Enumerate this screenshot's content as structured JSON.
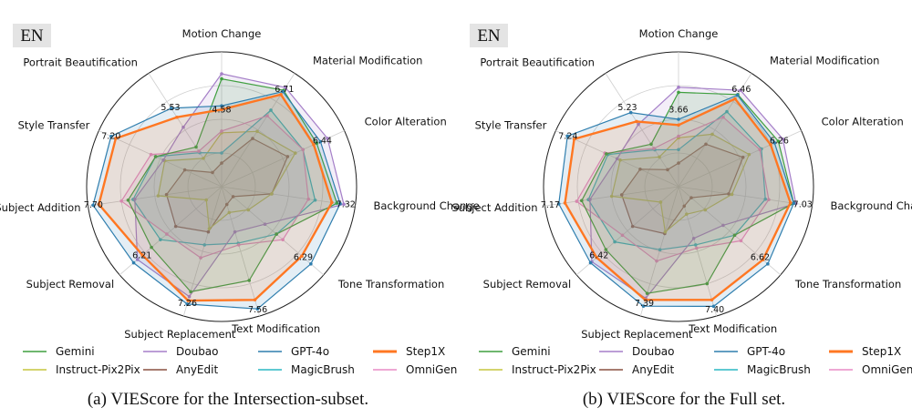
{
  "chart_data": [
    {
      "type": "radar",
      "badge": "EN",
      "caption": "(a) VIEScore for the Intersection-subset.",
      "axes": [
        "Motion Change",
        "Material Modification",
        "Color Alteration",
        "Background Change",
        "Tone Transformation",
        "Text Modification",
        "Subject Replacement",
        "Subject Removal",
        "Subject Addition",
        "Style Transfer",
        "Portrait Beautification"
      ],
      "range": [
        0,
        8
      ],
      "series": [
        {
          "name": "Gemini",
          "color": "#3f9f3f",
          "values": [
            6.4,
            6.8,
            6.2,
            6.9,
            4.3,
            5.8,
            6.5,
            5.5,
            5.6,
            4.3,
            2.8
          ]
        },
        {
          "name": "Doubao",
          "color": "#a57fc8",
          "values": [
            6.7,
            7.0,
            6.9,
            7.32,
            3.4,
            2.8,
            6.8,
            6.6,
            5.2,
            3.8,
            4.2
          ]
        },
        {
          "name": "GPT-4o",
          "color": "#2f7eae",
          "values": [
            4.8,
            6.71,
            6.44,
            7.1,
            7.0,
            7.56,
            7.26,
            6.9,
            7.7,
            7.2,
            5.53
          ]
        },
        {
          "name": "Step1X",
          "color": "#ff7722",
          "values": [
            4.58,
            6.5,
            6.0,
            6.6,
            6.29,
            7.0,
            7.05,
            6.21,
            7.35,
            6.9,
            4.9
          ]
        },
        {
          "name": "Instruct-Pix2Pix",
          "color": "#c6c63e",
          "values": [
            3.2,
            3.9,
            4.8,
            3.0,
            2.1,
            1.6,
            2.6,
            1.2,
            3.8,
            3.7,
            2.0
          ]
        },
        {
          "name": "AnyEdit",
          "color": "#8a5040",
          "values": [
            1.4,
            3.4,
            4.3,
            3.0,
            0.9,
            1.1,
            2.8,
            3.6,
            3.3,
            2.4,
            1.0
          ]
        },
        {
          "name": "MagicBrush",
          "color": "#2ab8c4",
          "values": [
            2.0,
            5.4,
            5.3,
            5.6,
            4.3,
            3.5,
            3.6,
            4.8,
            5.3,
            4.3,
            2.4
          ]
        },
        {
          "name": "OmniGen",
          "color": "#e88cc6",
          "values": [
            3.3,
            5.0,
            5.3,
            5.2,
            4.8,
            3.6,
            4.4,
            4.3,
            6.0,
            4.6,
            2.5
          ]
        }
      ],
      "annotations": [
        "4.58",
        "6.71",
        "6.44",
        "7.32",
        "6.29",
        "7.56",
        "7.26",
        "6.21",
        "7.70",
        "7.20",
        "5.53"
      ]
    },
    {
      "type": "radar",
      "badge": "EN",
      "caption": "(b) VIEScore for the Full set.",
      "axes": [
        "Motion Change",
        "Material Modification",
        "Color Alteration",
        "Background Change",
        "Tone Transformation",
        "Text Modification",
        "Subject Replacement",
        "Subject Removal",
        "Subject Addition",
        "Style Transfer",
        "Portrait Beautification"
      ],
      "range": [
        0,
        8
      ],
      "series": [
        {
          "name": "Gemini",
          "color": "#3f9f3f",
          "values": [
            5.6,
            6.5,
            6.5,
            6.9,
            4.4,
            6.0,
            6.6,
            5.7,
            5.8,
            4.7,
            3.0
          ]
        },
        {
          "name": "Doubao",
          "color": "#a57fc8",
          "values": [
            5.9,
            6.8,
            6.8,
            7.03,
            3.5,
            3.2,
            6.9,
            6.8,
            5.3,
            4.0,
            4.4
          ]
        },
        {
          "name": "GPT-4o",
          "color": "#2f7eae",
          "values": [
            4.0,
            6.46,
            6.26,
            6.9,
            7.0,
            7.4,
            7.39,
            6.9,
            7.17,
            7.24,
            5.23
          ]
        },
        {
          "name": "Step1X",
          "color": "#ff7722",
          "values": [
            3.66,
            6.2,
            6.0,
            6.7,
            6.62,
            7.0,
            7.0,
            6.42,
            6.8,
            6.8,
            4.6
          ]
        },
        {
          "name": "Instruct-Pix2Pix",
          "color": "#c6c63e",
          "values": [
            2.9,
            3.7,
            4.6,
            3.2,
            2.1,
            1.7,
            2.8,
            1.4,
            4.0,
            3.8,
            2.1
          ]
        },
        {
          "name": "AnyEdit",
          "color": "#8a5040",
          "values": [
            1.4,
            3.0,
            4.2,
            3.0,
            1.0,
            1.2,
            2.9,
            3.6,
            3.4,
            2.5,
            1.2
          ]
        },
        {
          "name": "MagicBrush",
          "color": "#2ab8c4",
          "values": [
            2.2,
            5.3,
            5.4,
            5.2,
            4.4,
            3.6,
            3.9,
            5.0,
            5.4,
            4.6,
            2.6
          ]
        },
        {
          "name": "OmniGen",
          "color": "#e88cc6",
          "values": [
            3.0,
            4.9,
            5.3,
            5.4,
            4.9,
            3.8,
            4.6,
            4.4,
            6.1,
            4.8,
            2.7
          ]
        }
      ],
      "annotations": [
        "3.66",
        "6.46",
        "6.26",
        "7.03",
        "6.62",
        "7.40",
        "7.39",
        "6.42",
        "7.17",
        "7.24",
        "5.23"
      ]
    }
  ],
  "legend": [
    "Gemini",
    "Doubao",
    "GPT-4o",
    "Step1X",
    "Instruct-Pix2Pix",
    "AnyEdit",
    "MagicBrush",
    "OmniGen"
  ]
}
